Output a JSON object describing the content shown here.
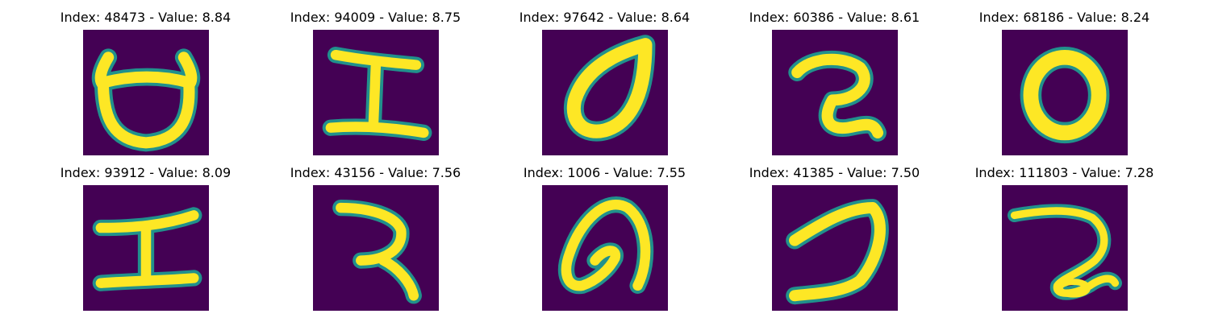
{
  "colors": {
    "background": "#440154",
    "ink_edge": "#21918c",
    "ink_mid": "#5ec962",
    "ink_core": "#fde725"
  },
  "panels": [
    {
      "title": "Index: 48473 - Value: 8.84",
      "glyph": "bowl-with-horns"
    },
    {
      "title": "Index: 94009 - Value: 8.75",
      "glyph": "i-beam"
    },
    {
      "title": "Index: 97642 - Value: 8.64",
      "glyph": "leaf-loop"
    },
    {
      "title": "Index: 60386 - Value: 8.61",
      "glyph": "hook-two"
    },
    {
      "title": "Index: 68186 - Value: 8.24",
      "glyph": "ring"
    },
    {
      "title": "Index: 93912 - Value: 8.09",
      "glyph": "i-beam"
    },
    {
      "title": "Index: 43156 - Value: 7.56",
      "glyph": "hook-two"
    },
    {
      "title": "Index: 1006 - Value: 7.55",
      "glyph": "leaf-loop"
    },
    {
      "title": "Index: 41385 - Value: 7.50",
      "glyph": "curve-stroke"
    },
    {
      "title": "Index: 111803 - Value: 7.28",
      "glyph": "hook-two-loop"
    }
  ]
}
